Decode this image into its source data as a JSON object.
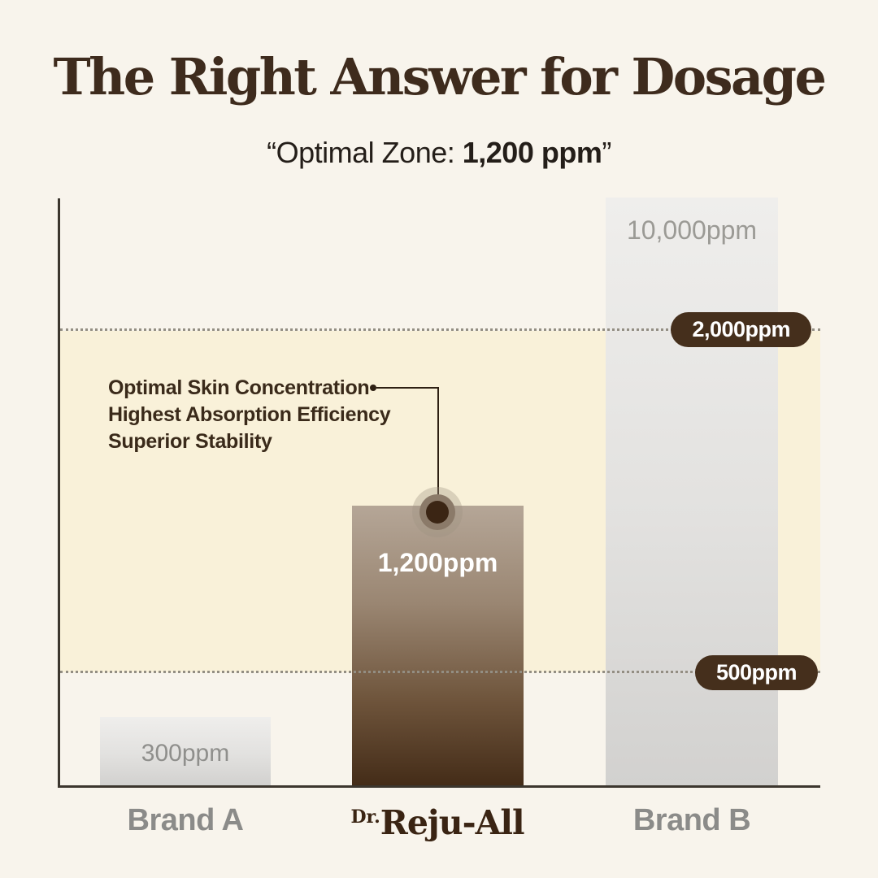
{
  "chart_data": {
    "type": "bar",
    "title": "The Right Answer for Dosage",
    "subtitle": "“Optimal Zone: 1,200 ppm”",
    "subtitle_parts": {
      "prefix": "“Optimal Zone: ",
      "bold_value": "1,200 ppm",
      "suffix": "”"
    },
    "unit": "ppm",
    "categories": [
      "Brand A",
      "Dr.Reju-All",
      "Brand B"
    ],
    "values": [
      300,
      1200,
      10000
    ],
    "bars": [
      {
        "category": "Brand A",
        "value": 300,
        "value_label": "300ppm",
        "style": "gray"
      },
      {
        "category": "Dr.Reju-All",
        "value": 1200,
        "value_label": "1,200ppm",
        "style": "brown-gradient"
      },
      {
        "category": "Brand B",
        "value": 10000,
        "value_label": "10,000ppm",
        "style": "gray"
      }
    ],
    "optimal_zone": {
      "min": 500,
      "max": 2000,
      "min_label": "500ppm",
      "max_label": "2,000ppm",
      "band_color": "#f9f1d9"
    },
    "annotation": {
      "lines": [
        "Optimal Skin Concentration",
        "Highest Absorption Efficiency",
        "Superior Stability"
      ],
      "target_bar": "Dr.Reju-All",
      "target_value": 1200
    },
    "brand_logo": {
      "prefix": "Dr.",
      "name": "Reju-All"
    },
    "axis": {
      "y_visible": true,
      "x_visible": true,
      "scale": "non-linear",
      "grid": "dotted-thresholds-only"
    },
    "legend": "none"
  },
  "colors": {
    "background": "#f8f4ec",
    "title_brown": "#3e2b1d",
    "pill_brown": "#452f1c",
    "zone_cream": "#f9f1d9",
    "bar_gray_top": "#efeeec",
    "bar_gray_bottom": "#d2d1cf",
    "bar_brown_top": "#b5a697",
    "bar_brown_bottom": "#442c18",
    "gray_text": "#8b8b89",
    "annotation_brown": "#3a2a1a",
    "axis": "#3c362e"
  }
}
